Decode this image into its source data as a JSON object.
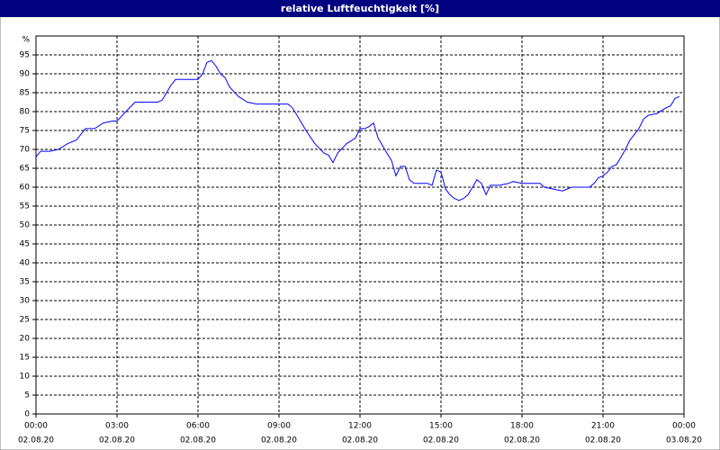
{
  "chart_data": {
    "type": "line",
    "title": "relative Luftfeuchtigkeit [%]",
    "y_label": "%",
    "color": "#0000ff",
    "grid": true,
    "xlim": [
      0,
      24
    ],
    "xticks": [
      {
        "value": 0,
        "label": "00:00"
      },
      {
        "value": 3,
        "label": "03:00"
      },
      {
        "value": 6,
        "label": "06:00"
      },
      {
        "value": 9,
        "label": "09:00"
      },
      {
        "value": 12,
        "label": "12:00"
      },
      {
        "value": 15,
        "label": "15:00"
      },
      {
        "value": 18,
        "label": "18:00"
      },
      {
        "value": 21,
        "label": "21:00"
      },
      {
        "value": 24,
        "label": "00:00"
      }
    ],
    "xtick_dates": [
      "02.08.20",
      "02.08.20",
      "02.08.20",
      "02.08.20",
      "02.08.20",
      "02.08.20",
      "02.08.20",
      "02.08.20",
      "03.08.20"
    ],
    "ylim": [
      0,
      100
    ],
    "yticks": [
      0,
      5,
      10,
      15,
      20,
      25,
      30,
      35,
      40,
      45,
      50,
      55,
      60,
      65,
      70,
      75,
      80,
      85,
      90,
      95
    ],
    "x": [
      0,
      0.17,
      0.5,
      0.83,
      1.17,
      1.5,
      1.83,
      2.17,
      2.5,
      2.83,
      3,
      3.33,
      3.67,
      4,
      4.5,
      4.67,
      5,
      5.17,
      5.67,
      6,
      6.17,
      6.33,
      6.5,
      6.67,
      6.83,
      7,
      7.17,
      7.5,
      7.83,
      8.17,
      8.67,
      9.33,
      9.5,
      9.67,
      10,
      10.33,
      10.67,
      10.83,
      11,
      11.17,
      11.5,
      11.83,
      12,
      12.17,
      12.33,
      12.5,
      12.67,
      13,
      13.17,
      13.33,
      13.5,
      13.67,
      13.83,
      14,
      14.33,
      14.5,
      14.67,
      14.83,
      15,
      15.17,
      15.33,
      15.5,
      15.67,
      15.83,
      16,
      16.17,
      16.33,
      16.5,
      16.67,
      16.83,
      17.17,
      17.5,
      17.67,
      18,
      18.67,
      18.83,
      19.17,
      19.5,
      19.83,
      20.33,
      20.5,
      20.67,
      20.83,
      21,
      21.17,
      21.33,
      21.5,
      21.67,
      21.83,
      22,
      22.17,
      22.33,
      22.5,
      22.67,
      23,
      23.33,
      23.5,
      23.67,
      23.83
    ],
    "values": [
      68,
      69.5,
      69.5,
      70,
      71.5,
      72.5,
      75.5,
      75.5,
      77,
      77.5,
      77.5,
      80,
      82.5,
      82.5,
      82.5,
      83,
      87,
      88.5,
      88.5,
      88.5,
      90,
      93,
      93.5,
      92,
      90,
      89,
      86.5,
      84,
      82.5,
      82,
      82,
      82,
      81,
      79,
      75,
      71.5,
      69,
      68.5,
      66.5,
      69,
      71.5,
      73,
      75.5,
      75.5,
      76,
      77,
      73,
      69,
      67,
      63,
      65.5,
      65.5,
      62,
      61,
      61,
      61,
      60.5,
      64.5,
      64,
      59.5,
      58,
      57,
      56.5,
      57,
      58,
      60,
      62,
      61,
      58,
      60.5,
      60.5,
      61,
      61.5,
      61,
      61,
      60,
      59.5,
      59,
      60,
      60,
      60,
      61,
      62.5,
      63,
      64,
      65.5,
      66,
      68,
      70,
      72.5,
      74,
      75.5,
      78,
      79,
      79.5,
      81,
      81.5,
      83.5,
      84
    ]
  }
}
